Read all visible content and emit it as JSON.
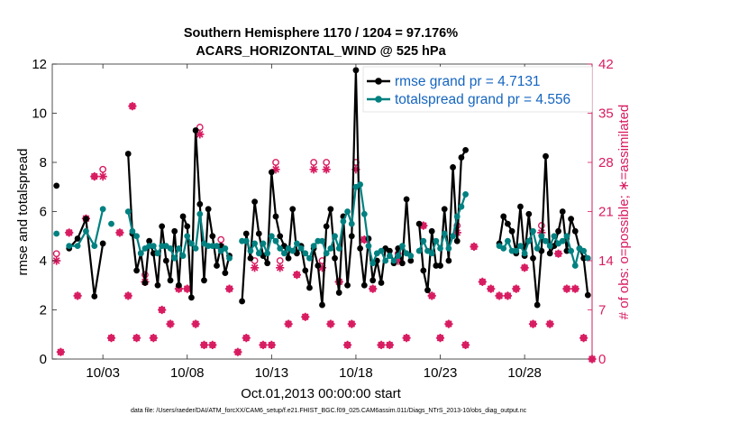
{
  "chart_data": {
    "type": "line",
    "title_line1": "Southern Hemisphere 1170 / 1204 = 97.176%",
    "title_line2": "ACARS_HORIZONTAL_WIND @ 525 hPa",
    "xlabel": "Oct.01,2013 00:00:00 start",
    "ylabel_left": "rmse and totalspread",
    "ylabel_right": "# of obs: o=possible; ∗=assimilated",
    "footnote": "data file: /Users/raeder/DAI/ATM_forcXX/CAM6_setup/f.e21.FHIST_BGC.f09_025.CAM6assim.011/Diags_NTrS_2013-10/obs_diag_output.nc",
    "xlim": [
      0,
      32
    ],
    "ylim_left": [
      0,
      12
    ],
    "ylim_right": [
      0,
      42
    ],
    "x_ticks": [
      3,
      8,
      13,
      18,
      23,
      28
    ],
    "x_tick_labels": [
      "10/03",
      "10/08",
      "10/13",
      "10/18",
      "10/23",
      "10/28"
    ],
    "y_left_ticks": [
      0,
      2,
      4,
      6,
      8,
      10,
      12
    ],
    "y_right_ticks": [
      0,
      7,
      14,
      21,
      28,
      35,
      42
    ],
    "colors": {
      "rmse": "#000000",
      "spread": "#008080",
      "obs": "#d81b60",
      "legend_text": "#1565c0",
      "right_axis": "#d81b60"
    },
    "series": [
      {
        "name": "rmse grand pr = 4.7131",
        "key": "rmse",
        "segments": [
          {
            "x": [
              0.25
            ],
            "y": [
              7.05
            ]
          },
          {
            "x": [
              1.0,
              1.5,
              2.0,
              2.5,
              3.0
            ],
            "y": [
              4.5,
              4.9,
              5.7,
              2.55,
              4.7
            ]
          },
          {
            "x": [
              4.5,
              4.75,
              5.0,
              5.25,
              5.5,
              5.75,
              6.0,
              6.25,
              6.5,
              6.75,
              7.0,
              7.25,
              7.5,
              7.75,
              8.0,
              8.25,
              8.5,
              8.75,
              9.0,
              9.25,
              9.5,
              9.75,
              10.0,
              10.25,
              10.5
            ],
            "y": [
              8.35,
              5.1,
              3.6,
              4.3,
              3.1,
              4.8,
              4.3,
              3.0,
              5.4,
              4.0,
              3.2,
              5.2,
              3.0,
              5.8,
              5.4,
              2.5,
              9.3,
              6.3,
              3.2,
              6.1,
              5.0,
              3.8,
              4.6,
              3.5,
              4.2
            ]
          },
          {
            "x": [
              11.25,
              11.5,
              11.75,
              12.0,
              12.25,
              12.5,
              12.75,
              13.0,
              13.25,
              13.5,
              13.75,
              14.0,
              14.25,
              14.5,
              14.75,
              15.0,
              15.25,
              15.5,
              15.75,
              16.0,
              16.25,
              16.5,
              16.75,
              17.0,
              17.25,
              17.5,
              17.75,
              18.0,
              18.25,
              18.5,
              18.75,
              19.0,
              19.25,
              19.5,
              19.75,
              20.0,
              20.25,
              20.5,
              20.75,
              21.0,
              21.25
            ],
            "y": [
              2.35,
              5.1,
              4.1,
              6.4,
              5.1,
              4.2,
              3.9,
              7.6,
              5.8,
              5.0,
              4.6,
              4.1,
              6.1,
              4.3,
              4.6,
              3.6,
              2.9,
              4.5,
              3.8,
              2.2,
              5.4,
              6.1,
              4.1,
              2.7,
              5.8,
              3.0,
              5.0,
              11.75,
              4.5,
              3.0,
              4.9,
              3.2,
              4.0,
              3.1,
              4.5,
              4.4,
              3.9,
              4.5,
              3.9,
              6.5,
              4.0
            ]
          },
          {
            "x": [
              21.75,
              22.0,
              22.25,
              22.5,
              22.75,
              23.0,
              23.25,
              23.5,
              23.75,
              24.0,
              24.25,
              24.5
            ],
            "y": [
              5.5,
              3.6,
              2.8,
              5.2,
              3.8,
              3.8,
              6.1,
              4.0,
              7.8,
              4.8,
              8.2,
              8.5
            ]
          },
          {
            "x": [
              26.5,
              26.75,
              27.0,
              27.25,
              27.5,
              27.75,
              28.0,
              28.25,
              28.5,
              28.75,
              29.0,
              29.25,
              29.5,
              29.75,
              30.0,
              30.25,
              30.5,
              30.75,
              31.0,
              31.25,
              31.5,
              31.75
            ],
            "y": [
              4.7,
              5.8,
              5.5,
              5.2,
              4.3,
              6.2,
              4.2,
              5.9,
              4.1,
              2.2,
              4.4,
              8.25,
              4.3,
              4.6,
              5.2,
              6.0,
              4.4,
              5.7,
              5.2,
              4.5,
              4.1,
              2.6
            ]
          }
        ]
      },
      {
        "name": "totalspread grand pr = 4.556",
        "key": "spread",
        "segments": [
          {
            "x": [
              0.25
            ],
            "y": [
              5.1
            ]
          },
          {
            "x": [
              1.0,
              1.5,
              2.0,
              2.5,
              3.0
            ],
            "y": [
              4.6,
              4.6,
              5.2,
              4.6,
              6.1
            ]
          },
          {
            "x": [
              3.5
            ],
            "y": [
              5.5
            ]
          },
          {
            "x": [
              4.5,
              4.75,
              5.0,
              5.25,
              5.5,
              5.75,
              6.0,
              6.25,
              6.5,
              6.75,
              7.0,
              7.25,
              7.5,
              7.75,
              8.0,
              8.25,
              8.5,
              8.75,
              9.0,
              9.25,
              9.5,
              9.75,
              10.0,
              10.25,
              10.5
            ],
            "y": [
              6.0,
              5.2,
              5.0,
              4.3,
              4.5,
              4.6,
              4.6,
              4.3,
              4.6,
              4.6,
              4.5,
              4.1,
              4.5,
              4.2,
              5.0,
              4.7,
              4.5,
              5.9,
              4.7,
              4.6,
              4.6,
              4.6,
              4.4,
              4.5,
              4.1
            ]
          },
          {
            "x": [
              11.25,
              11.5,
              11.75,
              12.0,
              12.25,
              12.5,
              12.75,
              13.0,
              13.25,
              13.5,
              13.75,
              14.0,
              14.25,
              14.5,
              14.75,
              15.0,
              15.25,
              15.5,
              15.75,
              16.0,
              16.25,
              16.5,
              16.75,
              17.0,
              17.25,
              17.5,
              17.75,
              18.0,
              18.25,
              18.5,
              18.75,
              19.0,
              19.25,
              19.5,
              19.75,
              20.0,
              20.25,
              20.5,
              20.75,
              21.0,
              21.25
            ],
            "y": [
              4.8,
              4.8,
              4.4,
              4.7,
              4.3,
              4.7,
              4.3,
              5.0,
              4.8,
              4.5,
              4.3,
              4.5,
              4.4,
              4.7,
              4.5,
              4.3,
              4.1,
              4.6,
              4.8,
              4.8,
              4.3,
              4.5,
              5.0,
              4.5,
              5.6,
              6.0,
              5.5,
              7.0,
              7.1,
              5.9,
              4.6,
              3.9,
              4.3,
              4.4,
              4.0,
              4.2,
              4.0,
              4.2,
              4.6,
              4.3,
              4.2
            ]
          },
          {
            "x": [
              21.75,
              22.0,
              22.25,
              22.5,
              22.75,
              23.0,
              23.25,
              23.5,
              23.75,
              24.0,
              24.25,
              24.5
            ],
            "y": [
              4.4,
              4.8,
              4.4,
              4.3,
              4.8,
              4.5,
              5.1,
              4.5,
              5.0,
              5.8,
              6.2,
              6.7
            ]
          },
          {
            "x": [
              26.5,
              26.75,
              27.0,
              27.25,
              27.5,
              27.75,
              28.0,
              28.25,
              28.5,
              28.75,
              29.0,
              29.25,
              29.5,
              29.75,
              30.0,
              30.25,
              30.5,
              30.75,
              31.0,
              31.25,
              31.5,
              31.75
            ],
            "y": [
              4.6,
              4.5,
              4.8,
              4.4,
              4.4,
              4.6,
              4.3,
              4.8,
              5.2,
              4.5,
              5.0,
              4.8,
              4.6,
              5.0,
              4.7,
              4.8,
              5.0,
              4.4,
              3.8,
              4.5,
              4.4,
              4.1
            ]
          }
        ]
      },
      {
        "name": "# of obs possible",
        "key": "possible",
        "marker": "o",
        "x": [
          0.25,
          0.5,
          1.0,
          1.5,
          2.0,
          2.5,
          3.0,
          3.5,
          4.0,
          4.5,
          4.75,
          5.0,
          5.5,
          6.0,
          6.5,
          7.0,
          7.5,
          8.0,
          8.5,
          8.75,
          9.0,
          9.5,
          10.0,
          10.5,
          11.0,
          11.5,
          12.0,
          12.5,
          13.0,
          13.25,
          13.5,
          14.0,
          14.5,
          15.0,
          15.5,
          16.0,
          16.25,
          16.5,
          17.0,
          17.5,
          17.75,
          18.0,
          18.5,
          19.0,
          19.5,
          20.0,
          20.5,
          21.0,
          22.0,
          22.5,
          23.0,
          23.5,
          24.0,
          24.5,
          25.0,
          25.5,
          26.0,
          26.5,
          27.0,
          27.5,
          28.0,
          28.5,
          29.0,
          29.5,
          30.0,
          30.5,
          31.0,
          31.5,
          32.0
        ],
        "y": [
          15,
          1,
          18,
          9,
          20,
          26,
          27,
          3,
          18,
          9,
          36,
          3,
          12,
          3,
          7,
          5,
          10,
          10,
          5,
          33,
          2,
          2,
          17,
          10,
          1,
          3,
          14,
          2,
          2,
          28,
          14,
          5,
          12,
          6,
          28,
          14,
          28,
          5,
          11,
          2,
          5,
          28,
          17,
          10,
          2,
          2,
          15,
          3,
          19,
          9,
          3,
          5,
          19,
          2,
          16,
          11,
          10,
          9,
          9,
          10,
          13,
          5,
          19,
          5,
          15,
          10,
          10,
          3,
          0
        ]
      },
      {
        "name": "# of obs assimilated",
        "key": "assimilated",
        "marker": "*",
        "x": [
          0.25,
          0.5,
          1.0,
          1.5,
          2.0,
          2.5,
          3.0,
          3.5,
          4.0,
          4.5,
          4.75,
          5.0,
          5.5,
          6.0,
          6.5,
          7.0,
          7.5,
          8.0,
          8.5,
          8.75,
          9.0,
          9.5,
          10.0,
          10.5,
          11.0,
          11.5,
          12.0,
          12.5,
          13.0,
          13.25,
          13.5,
          14.0,
          14.5,
          15.0,
          15.5,
          16.0,
          16.25,
          16.5,
          17.0,
          17.5,
          17.75,
          18.0,
          18.5,
          19.0,
          19.5,
          20.0,
          20.5,
          21.0,
          22.0,
          22.5,
          23.0,
          23.5,
          24.0,
          24.5,
          25.0,
          25.5,
          26.0,
          26.5,
          27.0,
          27.5,
          28.0,
          28.5,
          29.0,
          29.5,
          30.0,
          30.5,
          31.0,
          31.5,
          32.0
        ],
        "y": [
          14,
          1,
          18,
          9,
          20,
          26,
          26,
          3,
          18,
          9,
          36,
          3,
          11,
          3,
          7,
          5,
          10,
          10,
          5,
          32,
          2,
          2,
          16,
          10,
          1,
          3,
          13,
          2,
          2,
          27,
          13,
          5,
          12,
          6,
          27,
          13,
          27,
          5,
          11,
          2,
          5,
          27,
          17,
          10,
          2,
          2,
          14,
          3,
          19,
          9,
          3,
          5,
          18,
          2,
          16,
          11,
          10,
          9,
          9,
          10,
          13,
          5,
          18,
          5,
          15,
          10,
          10,
          3,
          0
        ]
      }
    ],
    "legend": {
      "rmse_label": "rmse grand pr = 4.7131",
      "spread_label": "totalspread grand pr = 4.556",
      "placement": "top-right"
    }
  }
}
